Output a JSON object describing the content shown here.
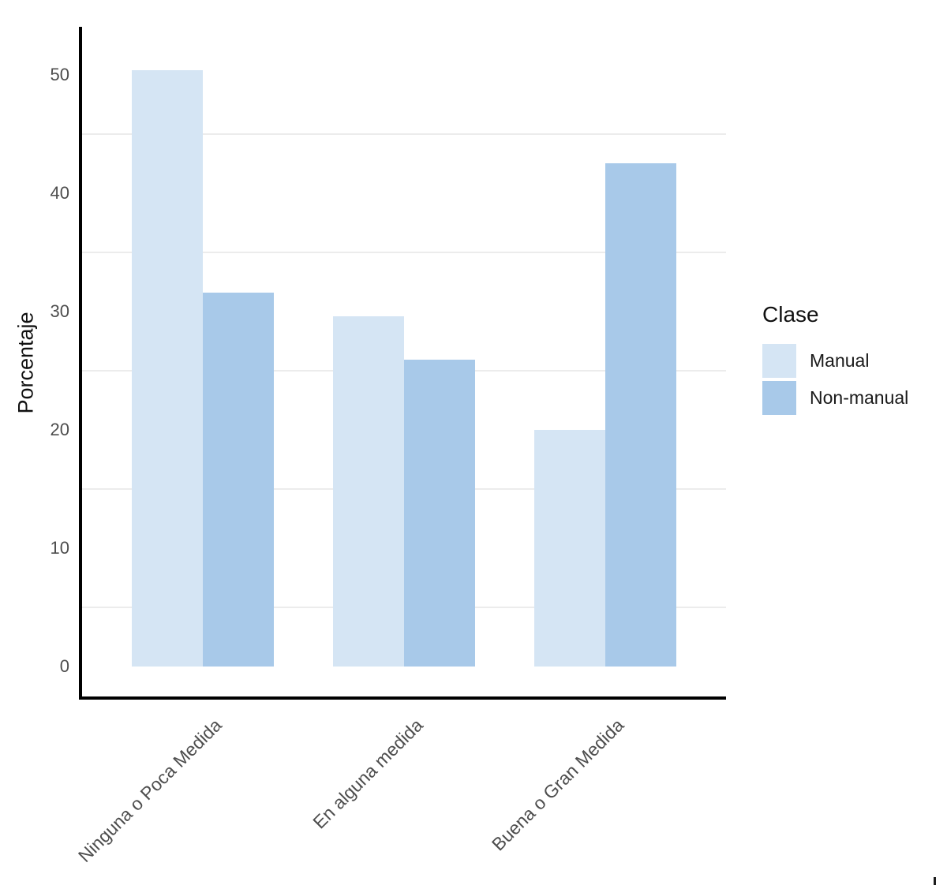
{
  "chart_data": {
    "type": "bar",
    "title": "",
    "xlabel": "",
    "ylabel": "Porcentaje",
    "categories": [
      "Ninguna o Poca Medida",
      "En alguna medida",
      "Buena o Gran Medida"
    ],
    "series": [
      {
        "name": "Manual",
        "color": "#d5e5f4",
        "values": [
          50.4,
          29.6,
          20.0
        ]
      },
      {
        "name": "Non-manual",
        "color": "#a8c9e9",
        "values": [
          31.6,
          25.9,
          42.5
        ]
      }
    ],
    "ylim": [
      0,
      52.7
    ],
    "yticks": [
      0,
      10,
      20,
      30,
      40,
      50
    ],
    "minor_gridlines": [
      5,
      15,
      25,
      35,
      45
    ],
    "grid": "minor-horizontal-only",
    "legend_position": "right",
    "legend_title": "Clase"
  },
  "colors": {
    "axis_line": "#000000",
    "tick_text": "#4d4d4d",
    "grid_line": "#ececec",
    "title_text": "#111111"
  }
}
